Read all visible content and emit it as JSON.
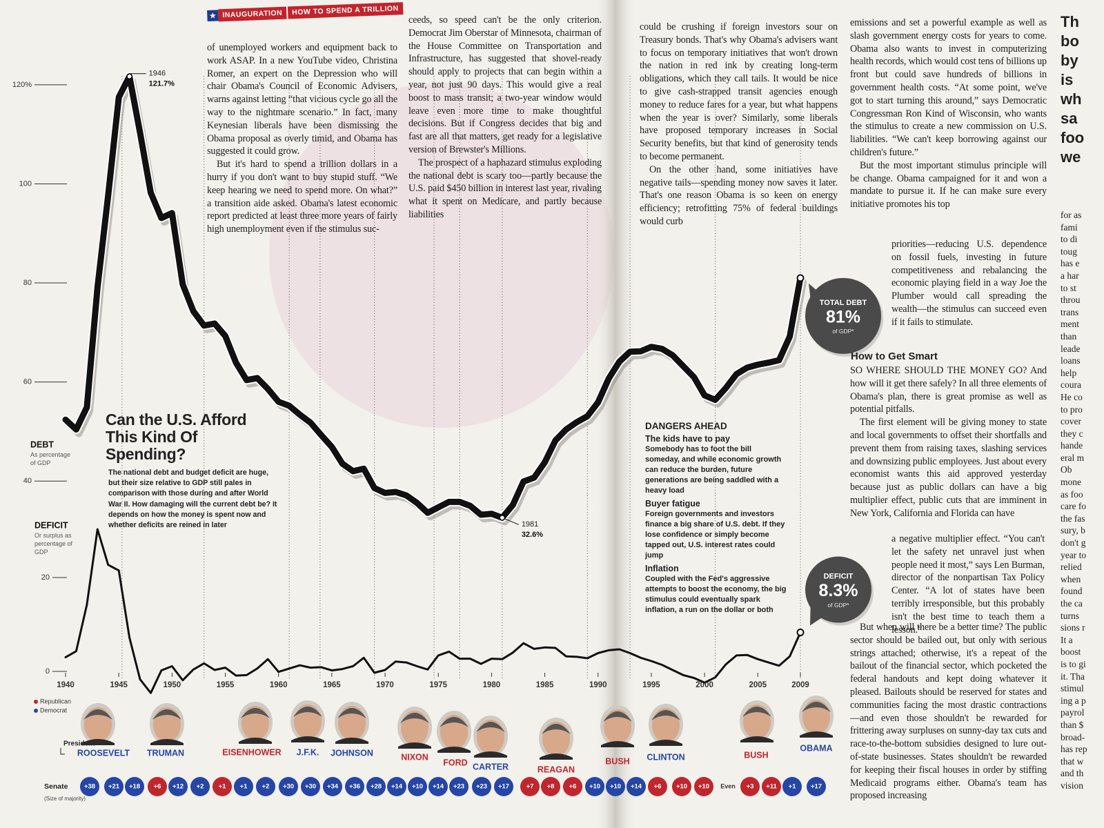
{
  "header": {
    "section": "INAUGURATION",
    "topic": "HOW TO SPEND A TRILLION"
  },
  "chart_data": [
    {
      "type": "line",
      "axis_title": "DEBT",
      "axis_subtitle": "As percentage of GDP",
      "color": "#111111",
      "x": [
        1940,
        1941,
        1942,
        1943,
        1944,
        1945,
        1946,
        1947,
        1948,
        1949,
        1950,
        1951,
        1952,
        1953,
        1954,
        1955,
        1956,
        1957,
        1958,
        1959,
        1960,
        1961,
        1962,
        1963,
        1964,
        1965,
        1966,
        1967,
        1968,
        1969,
        1970,
        1971,
        1972,
        1973,
        1974,
        1975,
        1976,
        1977,
        1978,
        1979,
        1980,
        1981,
        1982,
        1983,
        1984,
        1985,
        1986,
        1987,
        1988,
        1989,
        1990,
        1991,
        1992,
        1993,
        1994,
        1995,
        1996,
        1997,
        1998,
        1999,
        2000,
        2001,
        2002,
        2003,
        2004,
        2005,
        2006,
        2007,
        2008,
        2009
      ],
      "values": [
        52.4,
        50.4,
        54.9,
        79.1,
        97.6,
        117.5,
        121.7,
        110.3,
        98.2,
        93.1,
        94.1,
        79.7,
        74.3,
        71.4,
        71.8,
        69.3,
        63.9,
        60.4,
        60.8,
        58.6,
        56.0,
        55.2,
        53.4,
        51.8,
        49.3,
        46.9,
        43.5,
        42.0,
        42.5,
        38.6,
        37.6,
        37.8,
        37.1,
        35.6,
        33.6,
        34.7,
        35.8,
        35.8,
        35.0,
        33.2,
        33.4,
        32.6,
        35.2,
        39.9,
        40.7,
        43.8,
        48.2,
        50.4,
        51.9,
        53.1,
        55.9,
        60.7,
        64.1,
        66.1,
        66.2,
        67.1,
        66.7,
        65.4,
        63.2,
        61.0,
        57.3,
        56.4,
        58.8,
        61.6,
        62.9,
        63.5,
        63.9,
        64.4,
        69.2,
        81
      ],
      "xlim": [
        1940,
        2009
      ],
      "ylim": [
        30,
        125
      ],
      "yticks": [
        40,
        60,
        80,
        100,
        {
          "value": 120,
          "label": "120%"
        }
      ],
      "annotations": [
        {
          "x": 1946,
          "value_label": "121.7%"
        },
        {
          "x": 1981,
          "value_label": "32.6%"
        }
      ],
      "callout": {
        "title": "TOTAL DEBT",
        "value_label": "81%",
        "note": "of GDP*",
        "color": "#4a4a4a"
      }
    },
    {
      "type": "line",
      "axis_title": "DEFICIT",
      "axis_subtitle": "Or surplus as percentage of GDP",
      "color": "#111111",
      "x": [
        1940,
        1941,
        1942,
        1943,
        1944,
        1945,
        1946,
        1947,
        1948,
        1949,
        1950,
        1951,
        1952,
        1953,
        1954,
        1955,
        1956,
        1957,
        1958,
        1959,
        1960,
        1961,
        1962,
        1963,
        1964,
        1965,
        1966,
        1967,
        1968,
        1969,
        1970,
        1971,
        1972,
        1973,
        1974,
        1975,
        1976,
        1977,
        1978,
        1979,
        1980,
        1981,
        1982,
        1983,
        1984,
        1985,
        1986,
        1987,
        1988,
        1989,
        1990,
        1991,
        1992,
        1993,
        1994,
        1995,
        1996,
        1997,
        1998,
        1999,
        2000,
        2001,
        2002,
        2003,
        2004,
        2005,
        2006,
        2007,
        2008,
        2009
      ],
      "values": [
        3.0,
        4.3,
        14.2,
        30.3,
        22.7,
        21.5,
        7.2,
        -1.7,
        -4.6,
        0.2,
        1.1,
        -1.9,
        0.4,
        1.7,
        0.3,
        0.8,
        -0.9,
        -0.8,
        0.6,
        2.6,
        -0.1,
        0.6,
        1.3,
        0.8,
        0.9,
        0.2,
        0.5,
        1.1,
        2.9,
        -0.3,
        0.3,
        2.1,
        1.9,
        1.1,
        0.4,
        3.4,
        4.2,
        2.7,
        2.7,
        1.6,
        2.7,
        2.6,
        4.0,
        6.0,
        4.8,
        5.1,
        5.0,
        3.2,
        3.1,
        2.8,
        3.9,
        4.5,
        4.7,
        3.9,
        2.9,
        2.2,
        1.4,
        0.3,
        -0.8,
        -1.4,
        -2.4,
        -1.3,
        1.5,
        3.4,
        3.5,
        2.6,
        1.9,
        1.2,
        3.2,
        8.3
      ],
      "xlim": [
        1940,
        2009
      ],
      "ylim": [
        -5,
        35
      ],
      "yticks": [
        0,
        20
      ],
      "xticks": [
        1940,
        1945,
        1950,
        1955,
        1960,
        1965,
        1970,
        1975,
        1980,
        1985,
        1990,
        1995,
        2000,
        2005,
        2009
      ],
      "term_starts": [
        1945.3,
        1953,
        1961,
        1963.9,
        1969,
        1974.6,
        1977,
        1981,
        1989,
        1993,
        2001,
        2009
      ],
      "callout": {
        "title": "DEFICIT",
        "value_label": "8.3%",
        "note": "of GDP*",
        "color": "#4a4a4a"
      }
    }
  ],
  "intro": {
    "title": "Can the U.S. Afford This Kind Of Spending?",
    "text": "The national debt and budget deficit are huge, but their size relative to GDP still pales in comparison with those during and after World War II. How damaging will the current debt be? It depends on how the money is spent now and whether deficits are reined in later"
  },
  "parties": {
    "R": {
      "label": "Republican",
      "color": "#c0262d"
    },
    "D": {
      "label": "Democrat",
      "color": "#2546a6"
    }
  },
  "presidents": {
    "row_label": "President",
    "names": [
      {
        "name": "ROOSEVELT",
        "party": "D"
      },
      {
        "name": "TRUMAN",
        "party": "D"
      },
      {
        "name": "EISENHOWER",
        "party": "R"
      },
      {
        "name": "J.F.K.",
        "party": "D"
      },
      {
        "name": "JOHNSON",
        "party": "D"
      },
      {
        "name": "NIXON",
        "party": "R"
      },
      {
        "name": "FORD",
        "party": "R"
      },
      {
        "name": "CARTER",
        "party": "D"
      },
      {
        "name": "REAGAN",
        "party": "R"
      },
      {
        "name": "BUSH",
        "party": "R"
      },
      {
        "name": "CLINTON",
        "party": "D"
      },
      {
        "name": "BUSH",
        "party": "R"
      },
      {
        "name": "OBAMA",
        "party": "D"
      }
    ]
  },
  "senate": {
    "label": "Senate",
    "note": "(Size of majority)",
    "majorities": [
      {
        "label": "+38",
        "party": "D"
      },
      {
        "label": "+21",
        "party": "D"
      },
      {
        "label": "+18",
        "party": "D"
      },
      {
        "label": "+6",
        "party": "R"
      },
      {
        "label": "+12",
        "party": "D"
      },
      {
        "label": "+2",
        "party": "D"
      },
      {
        "label": "+1",
        "party": "R"
      },
      {
        "label": "+1",
        "party": "D"
      },
      {
        "label": "+2",
        "party": "D"
      },
      {
        "label": "+30",
        "party": "D"
      },
      {
        "label": "+30",
        "party": "D"
      },
      {
        "label": "+34",
        "party": "D"
      },
      {
        "label": "+36",
        "party": "D"
      },
      {
        "label": "+28",
        "party": "D"
      },
      {
        "label": "+14",
        "party": "D"
      },
      {
        "label": "+10",
        "party": "D"
      },
      {
        "label": "+14",
        "party": "D"
      },
      {
        "label": "+23",
        "party": "D"
      },
      {
        "label": "+23",
        "party": "D"
      },
      {
        "label": "+17",
        "party": "D"
      },
      {
        "label": "+7",
        "party": "R"
      },
      {
        "label": "+8",
        "party": "R"
      },
      {
        "label": "+6",
        "party": "R"
      },
      {
        "label": "+10",
        "party": "D"
      },
      {
        "label": "+10",
        "party": "D"
      },
      {
        "label": "+14",
        "party": "D"
      },
      {
        "label": "+6",
        "party": "R"
      },
      {
        "label": "+10",
        "party": "R"
      },
      {
        "label": "+10",
        "party": "R"
      },
      {
        "label": "Even",
        "party": null
      },
      {
        "label": "+3",
        "party": "R"
      },
      {
        "label": "+11",
        "party": "R"
      },
      {
        "label": "+1",
        "party": "D"
      },
      {
        "label": "+17",
        "party": "D"
      }
    ]
  },
  "sidebar": {
    "title": "DANGERS AHEAD",
    "items": [
      {
        "heading": "The kids have to pay",
        "text": "Somebody has to foot the bill someday, and while economic growth can reduce the burden, future generations are being saddled with a heavy load"
      },
      {
        "heading": "Buyer fatigue",
        "text": "Foreign governments and investors finance a big share of U.S. debt. If they lose confidence or simply become tapped out, U.S. interest rates could jump"
      },
      {
        "heading": "Inflation",
        "text": "Coupled with the Fed's aggressive attempts to boost the economy, the big stimulus could eventually spark inflation, a run on the dollar or both"
      }
    ]
  },
  "article": {
    "subhead": "How to Get Smart",
    "blocks": [
      {
        "paragraphs": [
          "of unemployed workers and equipment back to work ASAP. In a new YouTube video, Christina Romer, an expert on the Depression who will chair Obama's Council of Economic Advisers, warns against letting “that vicious cycle go all the way to the nightmare scenario.” In fact, many Keynesian liberals have been dismissing the Obama proposal as overly timid, and Obama has suggested it could grow.",
          "But it's hard to spend a trillion dollars in a hurry if you don't want to buy stupid stuff. “We keep hearing we need to spend more. On what?” a transition aide asked. Obama's latest economic report predicted at least three more years of fairly high unemployment even if the stimulus suc-"
        ]
      },
      {
        "paragraphs": [
          "ceeds, so speed can't be the only criterion. Democrat Jim Oberstar of Minnesota, chairman of the House Committee on Transportation and Infrastructure, has suggested that shovel-ready should apply to projects that can begin within a year, not just 90 days. This would give a real boost to mass transit; a two-year window would leave even more time to make thoughtful decisions. But if Congress decides that big and fast are all that matters, get ready for a legislative version of Brewster's Millions.",
          "The prospect of a haphazard stimulus exploding the national debt is scary too—partly because the U.S. paid $450 billion in interest last year, rivaling what it spent on Medicare, and partly because liabilities"
        ]
      },
      {
        "paragraphs": [
          "could be crushing if foreign investors sour on Treasury bonds. That's why Obama's advisers want to focus on temporary initiatives that won't drown the nation in red ink by creating long-term obligations, which they call tails. It would be nice to give cash-strapped transit agencies enough money to reduce fares for a year, but what happens when the year is over? Similarly, some liberals have proposed temporary increases in Social Security benefits, but that kind of generosity tends to become permanent.",
          "On the other hand, some initiatives have negative tails—spending money now saves it later. That's one reason Obama is so keen on energy efficiency; retrofitting 75% of federal buildings would curb"
        ]
      },
      {
        "paragraphs": [
          "emissions and set a powerful example as well as slash government energy costs for years to come. Obama also wants to invest in computerizing health records, which would cost tens of billions up front but could save hundreds of billions in government health costs. “At some point, we've got to start turning this around,” says Democratic Congressman Ron Kind of Wisconsin, who wants the stimulus to create a new commission on U.S. liabilities. “We can't keep borrowing against our children's future.”",
          "But the most important stimulus principle will be change. Obama campaigned for it and won a mandate to pursue it. If he can make sure every initiative promotes his top"
        ]
      },
      {
        "paragraphs": [
          "priorities—reducing U.S. dependence on fossil fuels, investing in future competitiveness and rebalancing the economic playing field in a way Joe the Plumber would call spreading the wealth—the stimulus can succeed even if it fails to stimulate."
        ]
      },
      {
        "paragraphs": [
          "SO WHERE SHOULD THE MONEY GO? And how will it get there safely? In all three elements of Obama's plan, there is great promise as well as potential pitfalls.",
          "The first element will be giving money to state and local governments to offset their shortfalls and prevent them from raising taxes, slashing services and downsizing public employees. Just about every economist wants this aid approved yesterday because just as public dollars can have a big multiplier effect, public cuts that are imminent in New York, California and Florida can have"
        ]
      },
      {
        "paragraphs": [
          "a negative multiplier effect. “You can't let the safety net unravel just when people need it most,” says Len Burman, director of the nonpartisan Tax Policy Center. “A lot of states have been terribly irresponsible, but this probably isn't the best time to teach them a lesson.”"
        ]
      },
      {
        "paragraphs": [
          "But when will there be a better time? The public sector should be bailed out, but only with serious strings attached; otherwise, it's a repeat of the bailout of the financial sector, which pocketed the federal handouts and kept doing whatever it pleased. Bailouts should be reserved for states and communities facing the most drastic contractions—and even those shouldn't be rewarded for frittering away surpluses on sunny-day tax cuts and race-to-the-bottom subsidies designed to lure out-of-state businesses. States shouldn't be rewarded for keeping their fiscal houses in order by stiffing Medicaid programs either. Obama's team has proposed increasing"
        ]
      }
    ]
  },
  "edge_column": {
    "pullquote": [
      "Th",
      "bo",
      "by",
      "is",
      "wh",
      "sa",
      "foo",
      "we"
    ],
    "lines": [
      "for as",
      "fami",
      "to di",
      "toug",
      "has e",
      "a har",
      "to st",
      "throu",
      "trans",
      "ment",
      "than",
      "leade",
      "loans",
      "help",
      "coura",
      "He co",
      "to pro",
      "cover",
      "they c",
      "hande",
      "eral m",
      "Ob",
      "mone",
      "as foo",
      "care fo",
      "the fas",
      "sury, b",
      "don't g",
      "year to",
      "relied",
      "when",
      "found",
      "the ca",
      "turns",
      "sions r",
      "It a",
      "boost",
      "is to gi",
      "it. Tha",
      "stimul",
      "ing a p",
      "payrol",
      "than $",
      "broad-",
      "has rep",
      "that w",
      "and th",
      "vision"
    ]
  }
}
